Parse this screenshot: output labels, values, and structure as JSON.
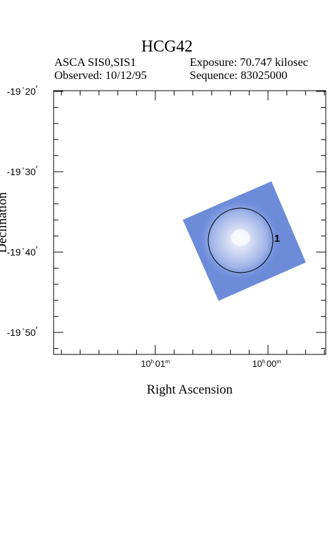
{
  "header": {
    "title": "HCG42",
    "instrument": "ASCA SIS0,SIS1",
    "exposure": "Exposure: 70.747 kilosec",
    "observed": "Observed: 10/12/95",
    "sequence": "Sequence: 83025000"
  },
  "axes": {
    "xlabel": "Right Ascension",
    "ylabel": "Declination",
    "y_ticks": [
      {
        "deg": "-19",
        "min": "20"
      },
      {
        "deg": "-19",
        "min": "30"
      },
      {
        "deg": "-19",
        "min": "40"
      },
      {
        "deg": "-19",
        "min": "50"
      }
    ],
    "x_ticks": [
      {
        "h": "10",
        "m": "01"
      },
      {
        "h": "10",
        "m": "00"
      }
    ]
  },
  "region": {
    "label": "1",
    "color": "#000000"
  },
  "colors": {
    "image_base": "#6f8fdc",
    "image_bright": "#eef0fa"
  }
}
